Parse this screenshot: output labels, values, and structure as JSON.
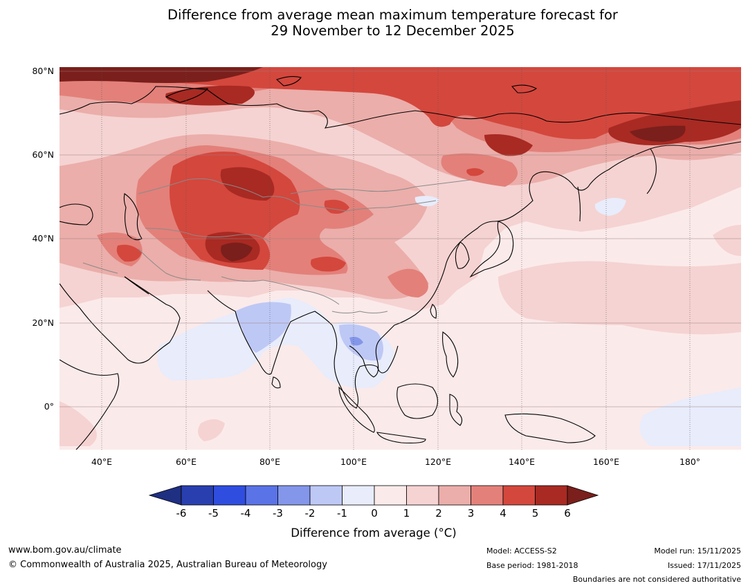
{
  "title": {
    "line1": "Difference from average mean maximum temperature forecast for",
    "line2": "29 November to 12 December 2025"
  },
  "map": {
    "lat_labels": [
      "80°N",
      "60°N",
      "40°N",
      "20°N",
      "0°"
    ],
    "lon_labels": [
      "40°E",
      "60°E",
      "80°E",
      "100°E",
      "120°E",
      "140°E",
      "160°E",
      "180°"
    ]
  },
  "colorbar": {
    "ticks": [
      "-6",
      "-5",
      "-4",
      "-3",
      "-2",
      "-1",
      "0",
      "1",
      "2",
      "3",
      "4",
      "5",
      "6"
    ],
    "colors": {
      "below": "#1f2f82",
      "n6": "#2a3faf",
      "n5": "#2f4ee0",
      "n4": "#5a73e6",
      "n3": "#8396ea",
      "n2": "#bec8f5",
      "n1": "#e8ecfb",
      "p0": "#fbeaea",
      "p1": "#f5d3d2",
      "p2": "#ebaeaa",
      "p3": "#e3807a",
      "p4": "#d4473d",
      "p5": "#a82a23",
      "above": "#7a1f1b"
    },
    "label": "Difference from average (°C)"
  },
  "footer": {
    "website": "www.bom.gov.au/climate",
    "copyright": "© Commonwealth of Australia 2025, Australian Bureau of Meteorology",
    "model": "Model: ACCESS-S2",
    "base_period": "Base period: 1981-2018",
    "model_run": "Model run: 15/11/2025",
    "issued": "Issued: 17/11/2025",
    "disclaimer": "Boundaries are not considered authoritative"
  }
}
